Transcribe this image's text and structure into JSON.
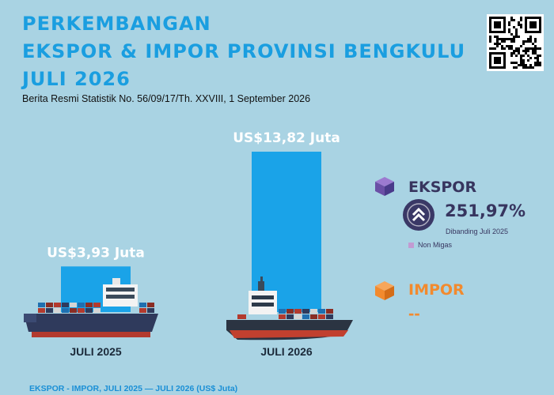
{
  "title": {
    "line1": "PERKEMBANGAN",
    "line2": "EKSPOR & IMPOR PROVINSI BENGKULU",
    "line3": "JULI 2026"
  },
  "subtitle": "Berita Resmi Statistik No. 56/09/17/Th. XXVIII, 1 September 2026",
  "colors": {
    "background": "#a9d3e3",
    "bar": "#1aa3e8",
    "title": "#1a9ee0",
    "ekspor": "#37355f",
    "impor": "#f28a2e",
    "non_migas": "#c29bd2"
  },
  "chart_data": {
    "type": "bar",
    "categories": [
      "JULI 2025",
      "JULI 2026"
    ],
    "values": [
      3.93,
      13.82
    ],
    "value_labels": [
      "US$3,93 Juta",
      "US$13,82 Juta"
    ],
    "unit": "US$ Juta",
    "ylim": [
      0,
      13.82
    ],
    "footer": "EKSPOR - IMPOR, JULI 2025 — JULI 2026 (US$ Juta)"
  },
  "ekspor": {
    "label": "EKSPOR",
    "growth": "251,97%",
    "growth_note": "Dibanding Juli 2025",
    "legend": "Non Migas",
    "icon": "double-chevron-up-icon"
  },
  "impor": {
    "label": "IMPOR",
    "value": "--"
  }
}
